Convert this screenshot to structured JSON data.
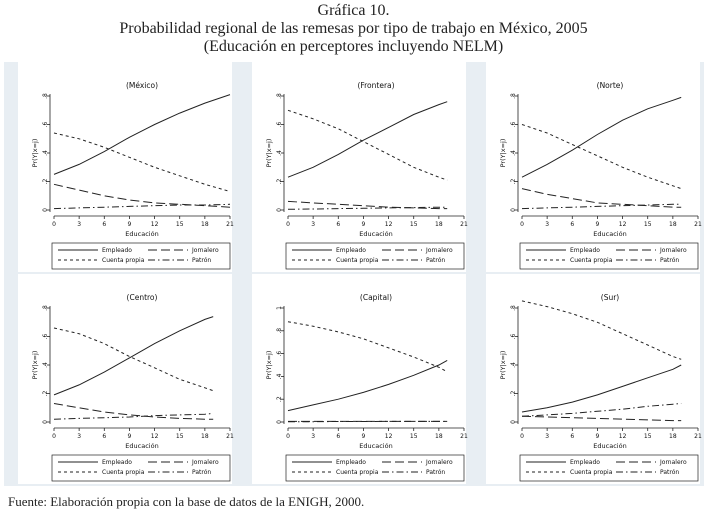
{
  "header": {
    "title_line1": "Gráfica 10.",
    "title_line2": "Probabilidad regional de las remesas por tipo de trabajo en México, 2005",
    "title_line3": "(Educación en perceptores incluyendo NELM)"
  },
  "footer": {
    "source": "Fuente: Elaboración propia con la base de datos de la ENIGH, 2000."
  },
  "shared": {
    "xlabel": "Educación",
    "ylabel": "Pr(Y|x=j)",
    "xticks": [
      "0",
      "3",
      "6",
      "9",
      "12",
      "15",
      "18",
      "21"
    ],
    "legend": [
      {
        "name": "Empleado",
        "style": "solid"
      },
      {
        "name": "Jornalero",
        "style": "longdash"
      },
      {
        "name": "Cuenta propia",
        "style": "shortdash"
      },
      {
        "name": "Patrón",
        "style": "dashdot"
      }
    ]
  },
  "chart_data": [
    {
      "type": "line",
      "title": "(México)",
      "xlim": [
        0,
        21
      ],
      "ylim": [
        0,
        0.8
      ],
      "yticks": [
        "0",
        ".2",
        ".4",
        ".6",
        ".8"
      ],
      "x": [
        0,
        3,
        6,
        9,
        12,
        15,
        18,
        21
      ],
      "series": [
        {
          "name": "Empleado",
          "values": [
            0.25,
            0.32,
            0.41,
            0.51,
            0.6,
            0.68,
            0.75,
            0.81
          ]
        },
        {
          "name": "Jornalero",
          "values": [
            0.18,
            0.14,
            0.1,
            0.07,
            0.05,
            0.04,
            0.03,
            0.02
          ]
        },
        {
          "name": "Cuenta propia",
          "values": [
            0.54,
            0.5,
            0.44,
            0.37,
            0.3,
            0.24,
            0.18,
            0.13
          ]
        },
        {
          "name": "Patrón",
          "values": [
            0.01,
            0.015,
            0.02,
            0.025,
            0.03,
            0.035,
            0.035,
            0.04
          ]
        }
      ]
    },
    {
      "type": "line",
      "title": "(Frontera)",
      "xlim": [
        0,
        21
      ],
      "ylim": [
        0,
        0.8
      ],
      "yticks": [
        "0",
        ".2",
        ".4",
        ".6",
        ".8"
      ],
      "x": [
        0,
        3,
        6,
        9,
        12,
        15,
        18,
        19
      ],
      "series": [
        {
          "name": "Empleado",
          "values": [
            0.23,
            0.3,
            0.39,
            0.49,
            0.58,
            0.67,
            0.74,
            0.76
          ]
        },
        {
          "name": "Jornalero",
          "values": [
            0.06,
            0.05,
            0.04,
            0.03,
            0.02,
            0.015,
            0.01,
            0.01
          ]
        },
        {
          "name": "Cuenta propia",
          "values": [
            0.7,
            0.64,
            0.57,
            0.48,
            0.39,
            0.3,
            0.23,
            0.21
          ]
        },
        {
          "name": "Patrón",
          "values": [
            0.005,
            0.007,
            0.01,
            0.012,
            0.015,
            0.017,
            0.02,
            0.02
          ]
        }
      ]
    },
    {
      "type": "line",
      "title": "(Norte)",
      "xlim": [
        0,
        21
      ],
      "ylim": [
        0,
        0.8
      ],
      "yticks": [
        "0",
        ".2",
        ".4",
        ".6",
        ".8"
      ],
      "x": [
        0,
        3,
        6,
        9,
        12,
        15,
        18,
        19
      ],
      "series": [
        {
          "name": "Empleado",
          "values": [
            0.23,
            0.32,
            0.42,
            0.53,
            0.63,
            0.71,
            0.77,
            0.79
          ]
        },
        {
          "name": "Jornalero",
          "values": [
            0.15,
            0.11,
            0.08,
            0.05,
            0.04,
            0.03,
            0.02,
            0.02
          ]
        },
        {
          "name": "Cuenta propia",
          "values": [
            0.6,
            0.54,
            0.46,
            0.38,
            0.3,
            0.23,
            0.17,
            0.15
          ]
        },
        {
          "name": "Patrón",
          "values": [
            0.01,
            0.015,
            0.02,
            0.025,
            0.03,
            0.035,
            0.04,
            0.04
          ]
        }
      ]
    },
    {
      "type": "line",
      "title": "(Centro)",
      "xlim": [
        0,
        21
      ],
      "ylim": [
        0,
        0.8
      ],
      "yticks": [
        "0",
        ".2",
        ".4",
        ".6",
        ".8"
      ],
      "x": [
        0,
        3,
        6,
        9,
        12,
        15,
        18,
        19
      ],
      "series": [
        {
          "name": "Empleado",
          "values": [
            0.19,
            0.26,
            0.35,
            0.45,
            0.55,
            0.64,
            0.72,
            0.74
          ]
        },
        {
          "name": "Jornalero",
          "values": [
            0.13,
            0.1,
            0.07,
            0.05,
            0.035,
            0.025,
            0.02,
            0.02
          ]
        },
        {
          "name": "Cuenta propia",
          "values": [
            0.66,
            0.62,
            0.55,
            0.46,
            0.38,
            0.3,
            0.24,
            0.22
          ]
        },
        {
          "name": "Patrón",
          "values": [
            0.02,
            0.025,
            0.03,
            0.035,
            0.045,
            0.05,
            0.055,
            0.06
          ]
        }
      ]
    },
    {
      "type": "line",
      "title": "(Capital)",
      "xlim": [
        0,
        21
      ],
      "ylim": [
        0,
        1
      ],
      "yticks": [
        "0",
        ".2",
        ".4",
        ".6",
        ".8",
        "1"
      ],
      "x": [
        0,
        3,
        6,
        9,
        12,
        15,
        18,
        19
      ],
      "series": [
        {
          "name": "Empleado",
          "values": [
            0.1,
            0.15,
            0.2,
            0.26,
            0.33,
            0.41,
            0.5,
            0.54
          ]
        },
        {
          "name": "Jornalero",
          "values": [
            0.005,
            0.005,
            0.005,
            0.005,
            0.005,
            0.005,
            0.005,
            0.005
          ]
        },
        {
          "name": "Cuenta propia",
          "values": [
            0.88,
            0.84,
            0.79,
            0.73,
            0.65,
            0.57,
            0.48,
            0.44
          ]
        },
        {
          "name": "Patrón",
          "values": [
            0.003,
            0.003,
            0.004,
            0.004,
            0.005,
            0.005,
            0.005,
            0.005
          ]
        }
      ]
    },
    {
      "type": "line",
      "title": "(Sur)",
      "xlim": [
        0,
        21
      ],
      "ylim": [
        0,
        0.8
      ],
      "yticks": [
        "0",
        ".2",
        ".4",
        ".6",
        ".8"
      ],
      "x": [
        0,
        3,
        6,
        9,
        12,
        15,
        18,
        19
      ],
      "series": [
        {
          "name": "Empleado",
          "values": [
            0.07,
            0.1,
            0.14,
            0.19,
            0.25,
            0.31,
            0.37,
            0.4
          ]
        },
        {
          "name": "Jornalero",
          "values": [
            0.04,
            0.035,
            0.03,
            0.025,
            0.02,
            0.015,
            0.01,
            0.01
          ]
        },
        {
          "name": "Cuenta propia",
          "values": [
            0.85,
            0.81,
            0.76,
            0.7,
            0.62,
            0.54,
            0.46,
            0.44
          ]
        },
        {
          "name": "Patrón",
          "values": [
            0.04,
            0.05,
            0.06,
            0.075,
            0.09,
            0.11,
            0.125,
            0.13
          ]
        }
      ]
    }
  ]
}
